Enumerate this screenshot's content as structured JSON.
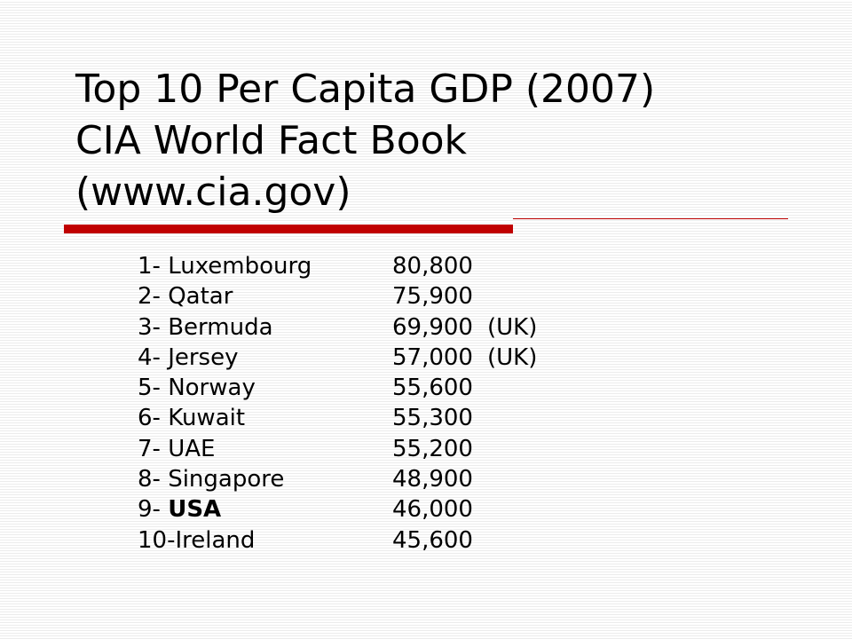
{
  "slide": {
    "title_lines": [
      "Top 10 Per Capita GDP (2007)",
      "CIA World Fact Book",
      "(www.cia.gov)"
    ]
  },
  "rankings": [
    {
      "rank": "1- ",
      "country": "Luxembourg",
      "value": "80,800",
      "note": ""
    },
    {
      "rank": "2- ",
      "country": "Qatar",
      "value": "75,900",
      "note": ""
    },
    {
      "rank": "3- ",
      "country": "Bermuda",
      "value": "69,900",
      "note": "(UK)"
    },
    {
      "rank": "4- ",
      "country": "Jersey",
      "value": "57,000",
      "note": "(UK)"
    },
    {
      "rank": "5- ",
      "country": "Norway",
      "value": "55,600",
      "note": ""
    },
    {
      "rank": "6- ",
      "country": "Kuwait",
      "value": "55,300",
      "note": ""
    },
    {
      "rank": "7- ",
      "country": "UAE",
      "value": "55,200",
      "note": ""
    },
    {
      "rank": "8- ",
      "country": "Singapore",
      "value": "48,900",
      "note": ""
    },
    {
      "rank": "9- ",
      "country": "USA",
      "value": "46,000",
      "note": "",
      "bold": true
    },
    {
      "rank": "10-",
      "country": "Ireland",
      "value": "45,600",
      "note": ""
    }
  ],
  "colors": {
    "accent_rule": "#c00000",
    "text": "#000000",
    "background_stripe": "#ececec"
  }
}
